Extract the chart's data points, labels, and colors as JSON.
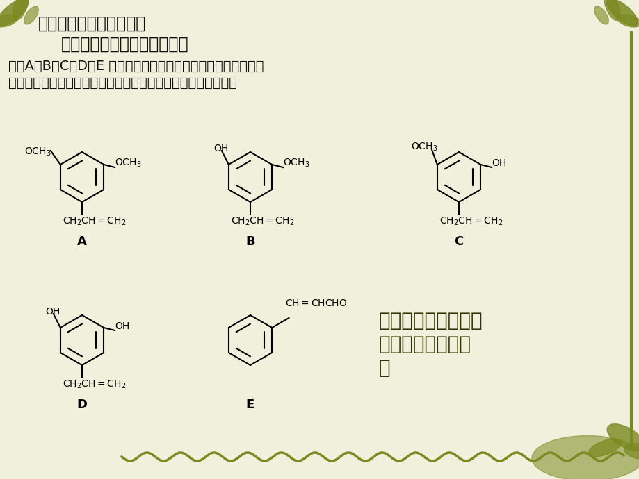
{
  "title1": "三、常见题型及解题策略",
  "title2": "（一）判断是否为同分异构体",
  "body_text1": "例、A、B、C、D、E 五种芳香化合物都是某些植物挥发油中的主",
  "body_text2": "要成分，有的是药物，有的是香料。它们的结构简式如下所示：",
  "label_A": "A",
  "label_B": "B",
  "label_C": "C",
  "label_D": "D",
  "label_E": "E",
  "question_text1": "这五种化合物中，互",
  "question_text2": "为同分异构体的是",
  "question_text3": "。",
  "bg_color": "#f0f0dc",
  "text_color": "#111111",
  "structure_color": "#000000",
  "deco_color": "#7a8a20",
  "title_fontsize": 17,
  "subtitle_fontsize": 17,
  "body_fontsize": 14,
  "label_fontsize": 13,
  "question_fontsize": 20
}
